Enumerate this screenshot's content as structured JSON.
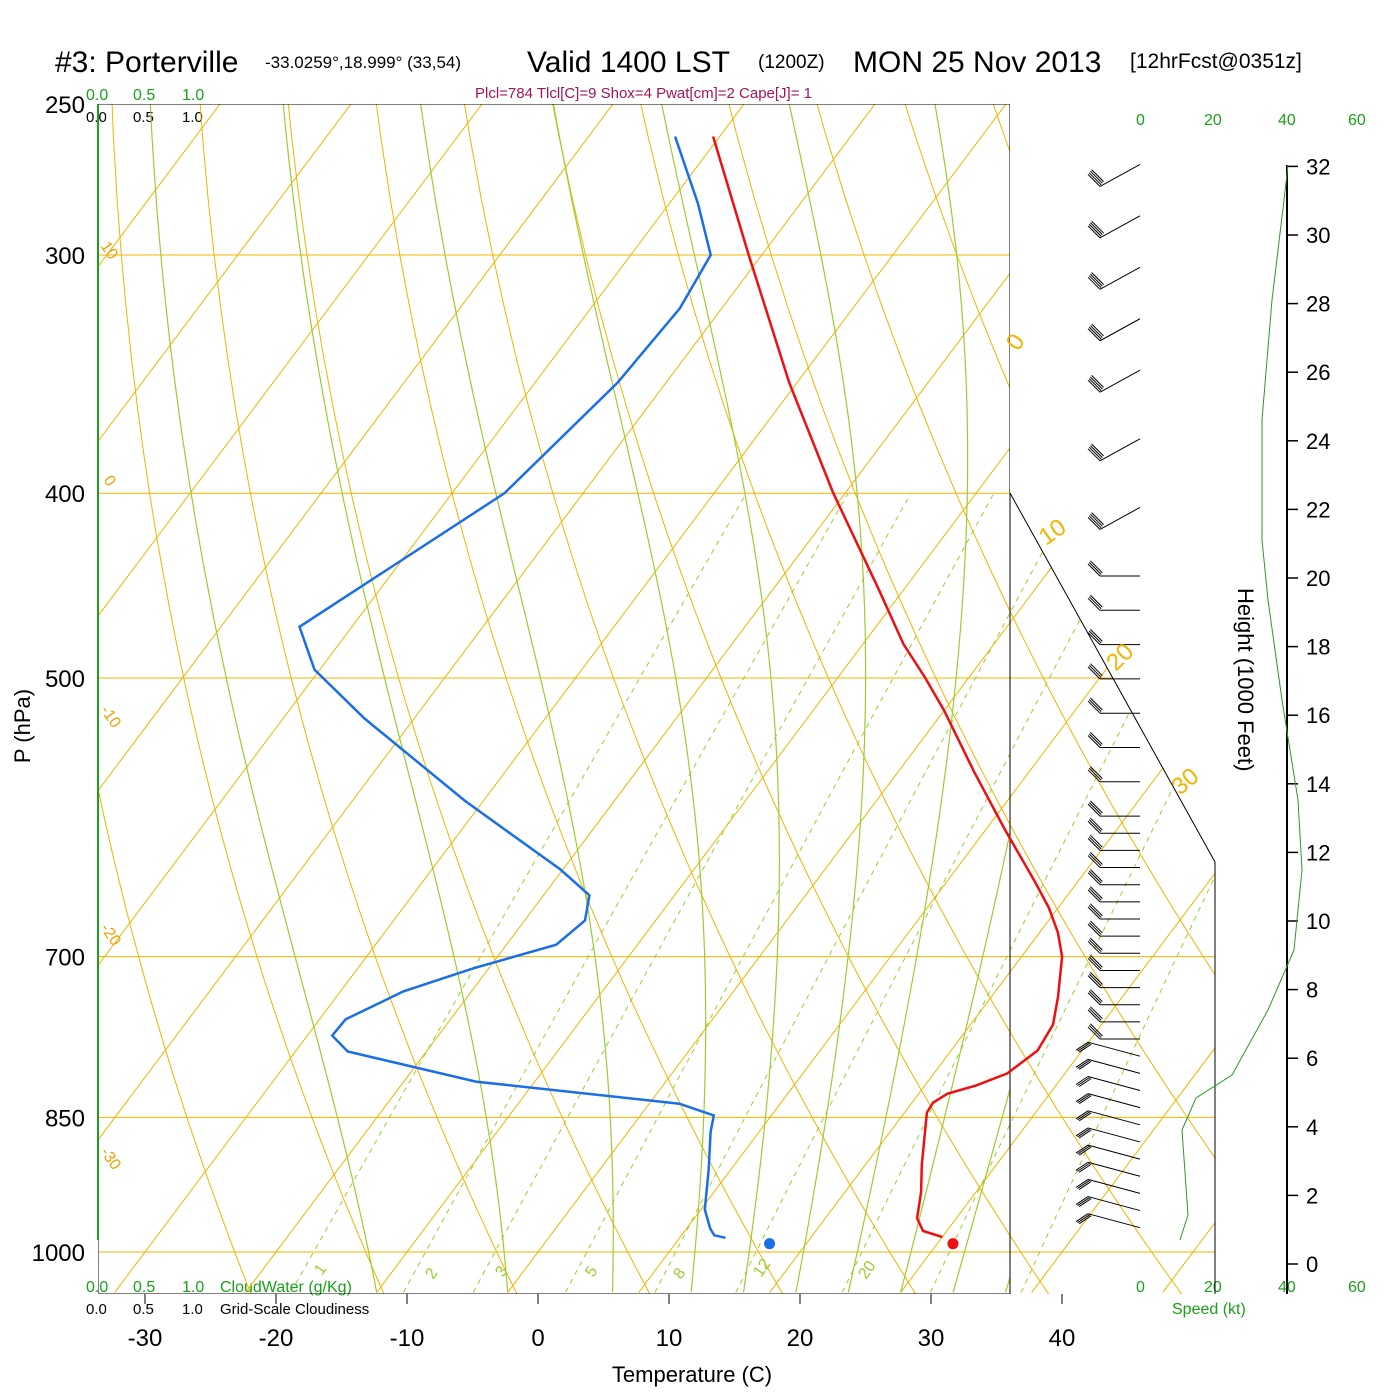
{
  "header": {
    "station": "#3: Porterville",
    "coords": "-33.0259°,18.999° (33,54)",
    "valid_label": "Valid 1400 LST",
    "utc_time": "(1200Z)",
    "date": "MON 25 Nov 2013",
    "forecast": "[12hrFcst@0351z]"
  },
  "params": "Plcl=784 Tlcl[C]=9 Shox=4 Pwat[cm]=2 Cape[J]= 1",
  "cloud_scales": {
    "top_green": [
      "0.0",
      "0.5",
      "1.0"
    ],
    "top_black": [
      "0.0",
      "0.5",
      "1.0"
    ],
    "bottom_green": [
      "0.0",
      "0.5",
      "1.0"
    ],
    "bottom_black": [
      "0.0",
      "0.5",
      "1.0"
    ],
    "cloudwater_label": "CloudWater (g/Kg)",
    "cloudiness_label": "Grid-Scale Cloudiness"
  },
  "speed_scale": {
    "ticks": [
      "0",
      "20",
      "40",
      "60"
    ],
    "label": "Speed (kt)"
  },
  "chart_data": {
    "type": "skew-t",
    "title": "#3: Porterville Valid 1400 LST (1200Z) MON 25 Nov 2013",
    "xlabel": "Temperature (C)",
    "ylabel": "P (hPa)",
    "y2label": "Height (1000 Feet)",
    "xticks": [
      -30,
      -20,
      -10,
      0,
      10,
      20,
      30,
      40
    ],
    "pticks": [
      250,
      300,
      400,
      500,
      700,
      850,
      1000
    ],
    "hticks": [
      0,
      2,
      4,
      6,
      8,
      10,
      12,
      14,
      16,
      18,
      20,
      22,
      24,
      26,
      28,
      30,
      32
    ],
    "isotherm_labels": [
      "10",
      "0",
      "-10",
      "-20",
      "-30",
      "0",
      "10",
      "20",
      "30"
    ],
    "mixing_ratio_labels": [
      "1",
      "2",
      "3",
      "5",
      "8",
      "12",
      "20"
    ],
    "temperature_profile": [
      {
        "p": 982,
        "t": 30.0
      },
      {
        "p": 975,
        "t": 28.2
      },
      {
        "p": 960,
        "t": 27.0
      },
      {
        "p": 930,
        "t": 25.8
      },
      {
        "p": 900,
        "t": 24.3
      },
      {
        "p": 870,
        "t": 22.9
      },
      {
        "p": 845,
        "t": 21.7
      },
      {
        "p": 835,
        "t": 21.6
      },
      {
        "p": 826,
        "t": 22.2
      },
      {
        "p": 818,
        "t": 23.9
      },
      {
        "p": 806,
        "t": 25.6
      },
      {
        "p": 784,
        "t": 26.6
      },
      {
        "p": 760,
        "t": 26.3
      },
      {
        "p": 735,
        "t": 25.1
      },
      {
        "p": 700,
        "t": 23.1
      },
      {
        "p": 680,
        "t": 21.4
      },
      {
        "p": 660,
        "t": 19.3
      },
      {
        "p": 640,
        "t": 16.8
      },
      {
        "p": 600,
        "t": 11.4
      },
      {
        "p": 560,
        "t": 5.8
      },
      {
        "p": 520,
        "t": 0.0
      },
      {
        "p": 500,
        "t": -3.3
      },
      {
        "p": 480,
        "t": -6.9
      },
      {
        "p": 450,
        "t": -11.8
      },
      {
        "p": 400,
        "t": -20.9
      },
      {
        "p": 350,
        "t": -30.6
      },
      {
        "p": 300,
        "t": -41.0
      },
      {
        "p": 260,
        "t": -50.5
      }
    ],
    "dewpoint_profile": [
      {
        "p": 983,
        "t": 13.5
      },
      {
        "p": 980,
        "t": 12.5
      },
      {
        "p": 972,
        "t": 11.8
      },
      {
        "p": 950,
        "t": 10.3
      },
      {
        "p": 905,
        "t": 8.3
      },
      {
        "p": 865,
        "t": 6.3
      },
      {
        "p": 848,
        "t": 5.6
      },
      {
        "p": 836,
        "t": 2.3
      },
      {
        "p": 814,
        "t": -14.5
      },
      {
        "p": 785,
        "t": -26.0
      },
      {
        "p": 770,
        "t": -28.1
      },
      {
        "p": 755,
        "t": -28.0
      },
      {
        "p": 730,
        "t": -25.2
      },
      {
        "p": 710,
        "t": -21.2
      },
      {
        "p": 690,
        "t": -16.2
      },
      {
        "p": 670,
        "t": -15.4
      },
      {
        "p": 650,
        "t": -16.5
      },
      {
        "p": 630,
        "t": -20.2
      },
      {
        "p": 580,
        "t": -31.4
      },
      {
        "p": 525,
        "t": -43.8
      },
      {
        "p": 495,
        "t": -50.4
      },
      {
        "p": 470,
        "t": -54.0
      },
      {
        "p": 400,
        "t": -46.0
      },
      {
        "p": 350,
        "t": -43.7
      },
      {
        "p": 320,
        "t": -43.2
      },
      {
        "p": 300,
        "t": -43.9
      },
      {
        "p": 282,
        "t": -47.8
      },
      {
        "p": 260,
        "t": -53.4
      }
    ],
    "surface_temp_c": 31.2,
    "surface_dewpoint_c": 17.2,
    "wind_barb_heights_kft": [
      1,
      1.5,
      2,
      2.5,
      3,
      3.5,
      4,
      4.5,
      5,
      5.5,
      6,
      6.5,
      7,
      7.5,
      8,
      8.5,
      9,
      9.5,
      10,
      10.5,
      11,
      11.5,
      12,
      12.5,
      13,
      14,
      15,
      16,
      17,
      18,
      19,
      20,
      22,
      24,
      26,
      27.5,
      29,
      30.5,
      32
    ]
  }
}
